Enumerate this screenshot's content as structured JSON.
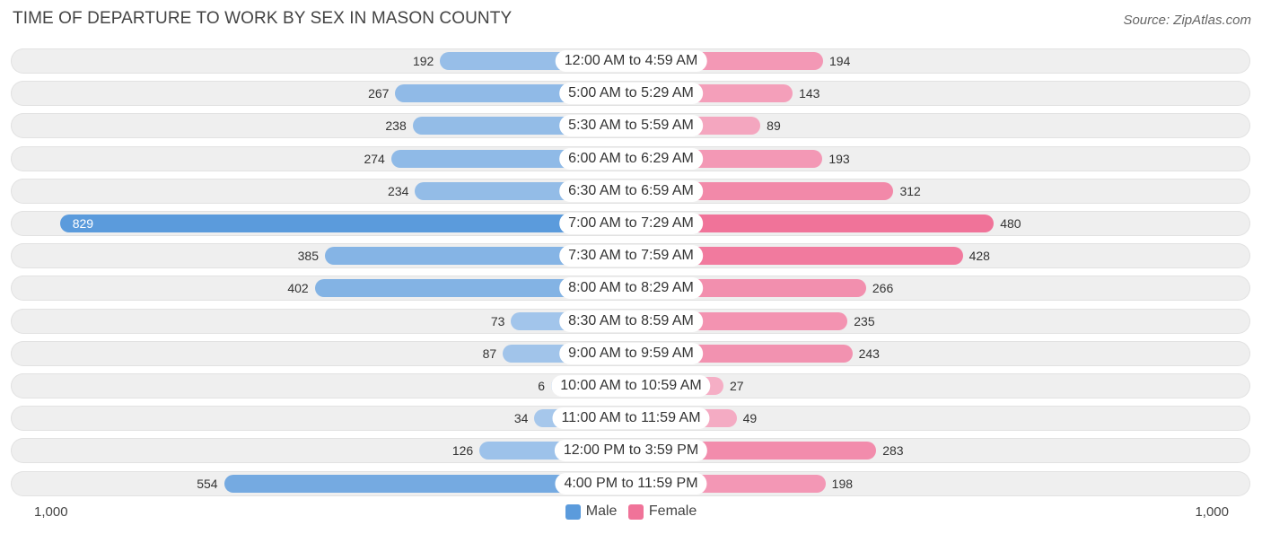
{
  "header": {
    "title": "TIME OF DEPARTURE TO WORK BY SEX IN MASON COUNTY",
    "source_label": "Source: ZipAtlas.com"
  },
  "colors": {
    "male_light": "#a9c9ec",
    "male_strong": "#5b9bdc",
    "female_light": "#f5b1c8",
    "female_strong": "#f07399"
  },
  "legend": {
    "male_label": "Male",
    "female_label": "Female"
  },
  "axis": {
    "left_label": "1,000",
    "right_label": "1,000"
  },
  "chart_data": {
    "type": "bar",
    "orientation": "horizontal-diverging",
    "title": "TIME OF DEPARTURE TO WORK BY SEX IN MASON COUNTY",
    "xlim": [
      -1000,
      1000
    ],
    "categories": [
      "12:00 AM to 4:59 AM",
      "5:00 AM to 5:29 AM",
      "5:30 AM to 5:59 AM",
      "6:00 AM to 6:29 AM",
      "6:30 AM to 6:59 AM",
      "7:00 AM to 7:29 AM",
      "7:30 AM to 7:59 AM",
      "8:00 AM to 8:29 AM",
      "8:30 AM to 8:59 AM",
      "9:00 AM to 9:59 AM",
      "10:00 AM to 10:59 AM",
      "11:00 AM to 11:59 AM",
      "12:00 PM to 3:59 PM",
      "4:00 PM to 11:59 PM"
    ],
    "series": [
      {
        "name": "Male",
        "values": [
          192,
          267,
          238,
          274,
          234,
          829,
          385,
          402,
          73,
          87,
          6,
          34,
          126,
          554
        ]
      },
      {
        "name": "Female",
        "values": [
          194,
          143,
          89,
          193,
          312,
          480,
          428,
          266,
          235,
          243,
          27,
          49,
          283,
          198
        ]
      }
    ],
    "legend_position": "bottom-center"
  }
}
